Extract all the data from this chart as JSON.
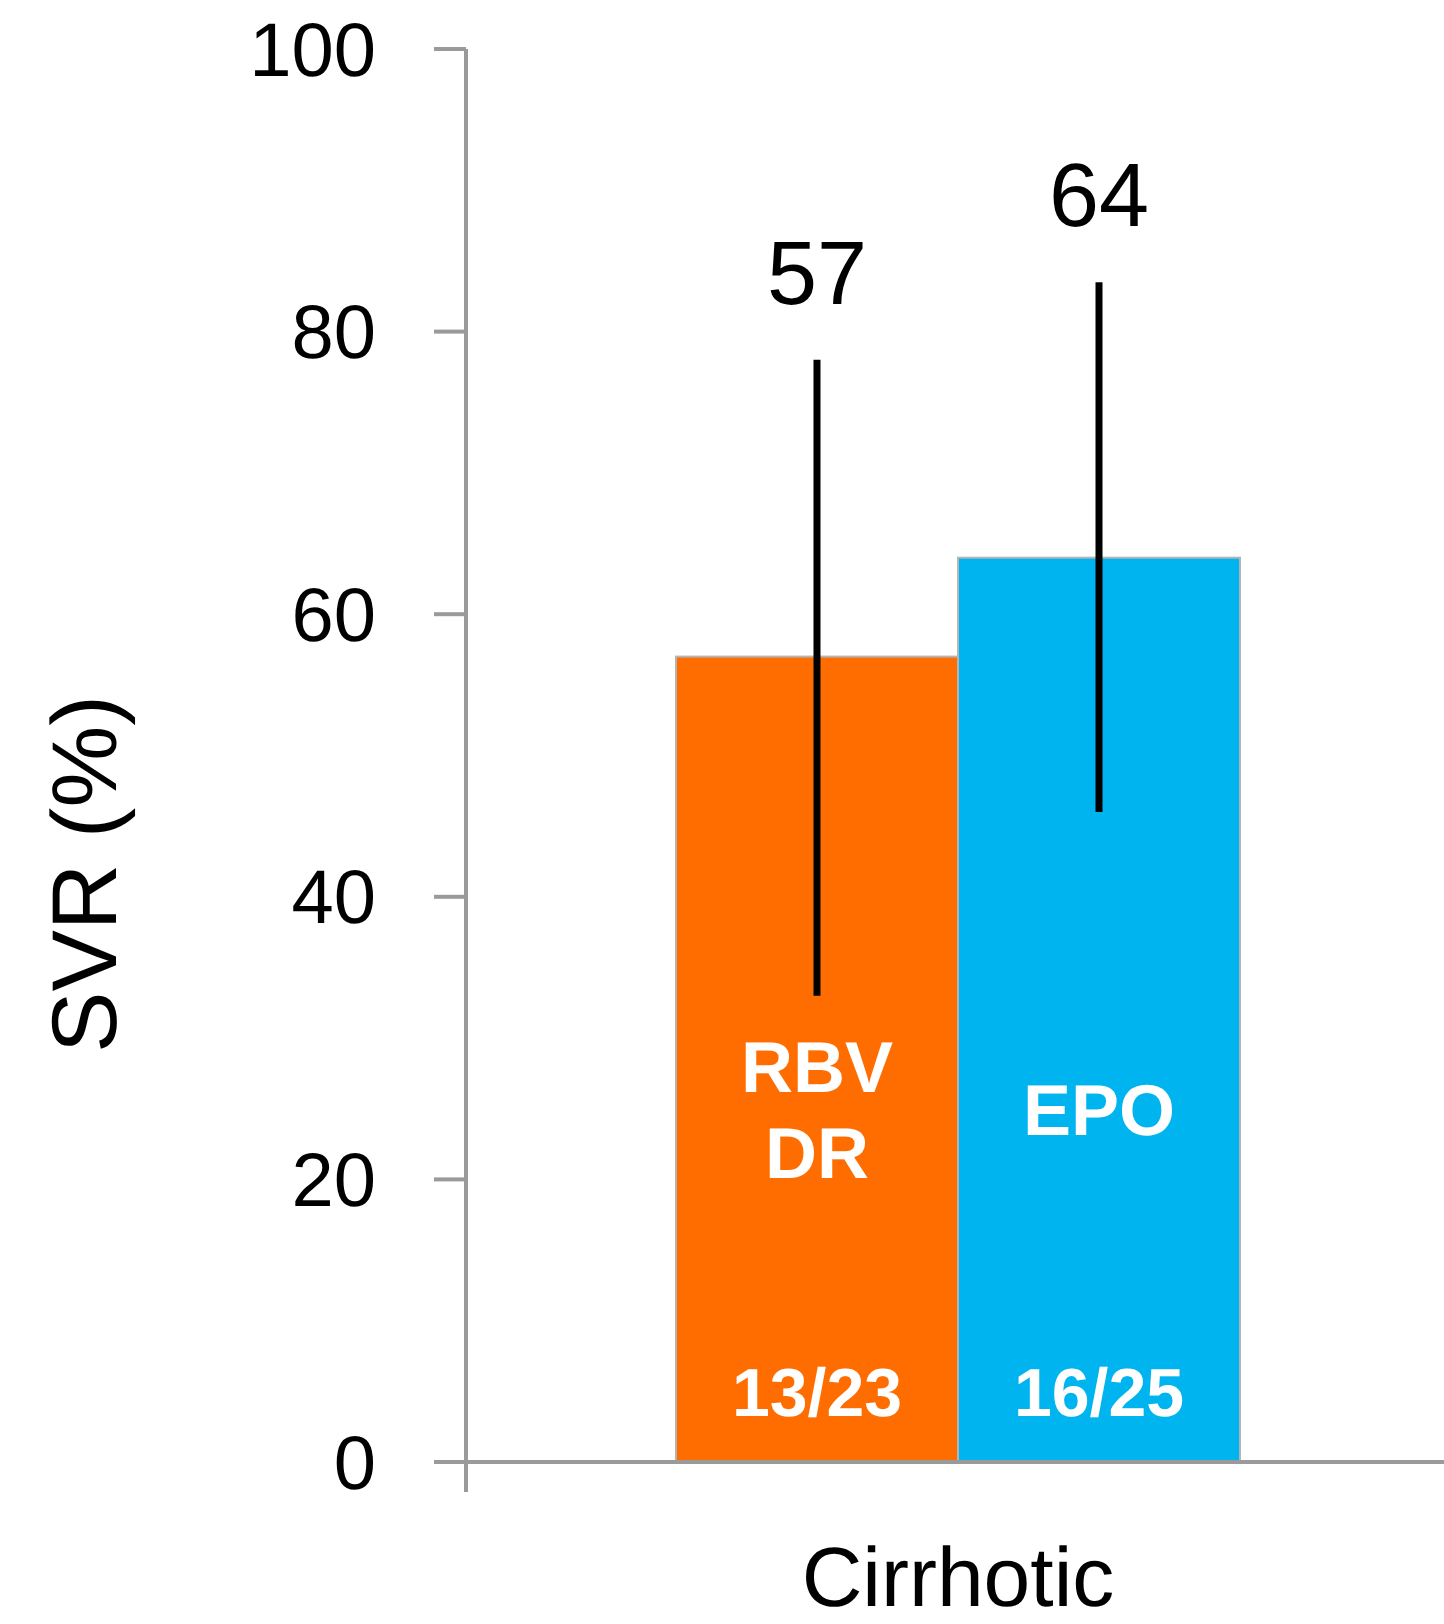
{
  "chart_data": {
    "type": "bar",
    "ylabel": "SVR (%)",
    "categories": [
      "Cirrhotic"
    ],
    "series": [
      {
        "name": "RBV DR",
        "color": "#ff6d00",
        "values": [
          57
        ],
        "errors": [
          [
            33,
            78
          ]
        ],
        "value_labels": [
          "13/23"
        ]
      },
      {
        "name": "EPO",
        "color": "#00b4ef",
        "values": [
          64
        ],
        "errors": [
          [
            46,
            83.5
          ]
        ],
        "value_labels": [
          "16/25"
        ]
      }
    ],
    "ylim": [
      0,
      100
    ],
    "yticks": [
      0,
      20,
      40,
      60,
      80,
      100
    ],
    "annotations": [
      "57",
      "64"
    ]
  }
}
